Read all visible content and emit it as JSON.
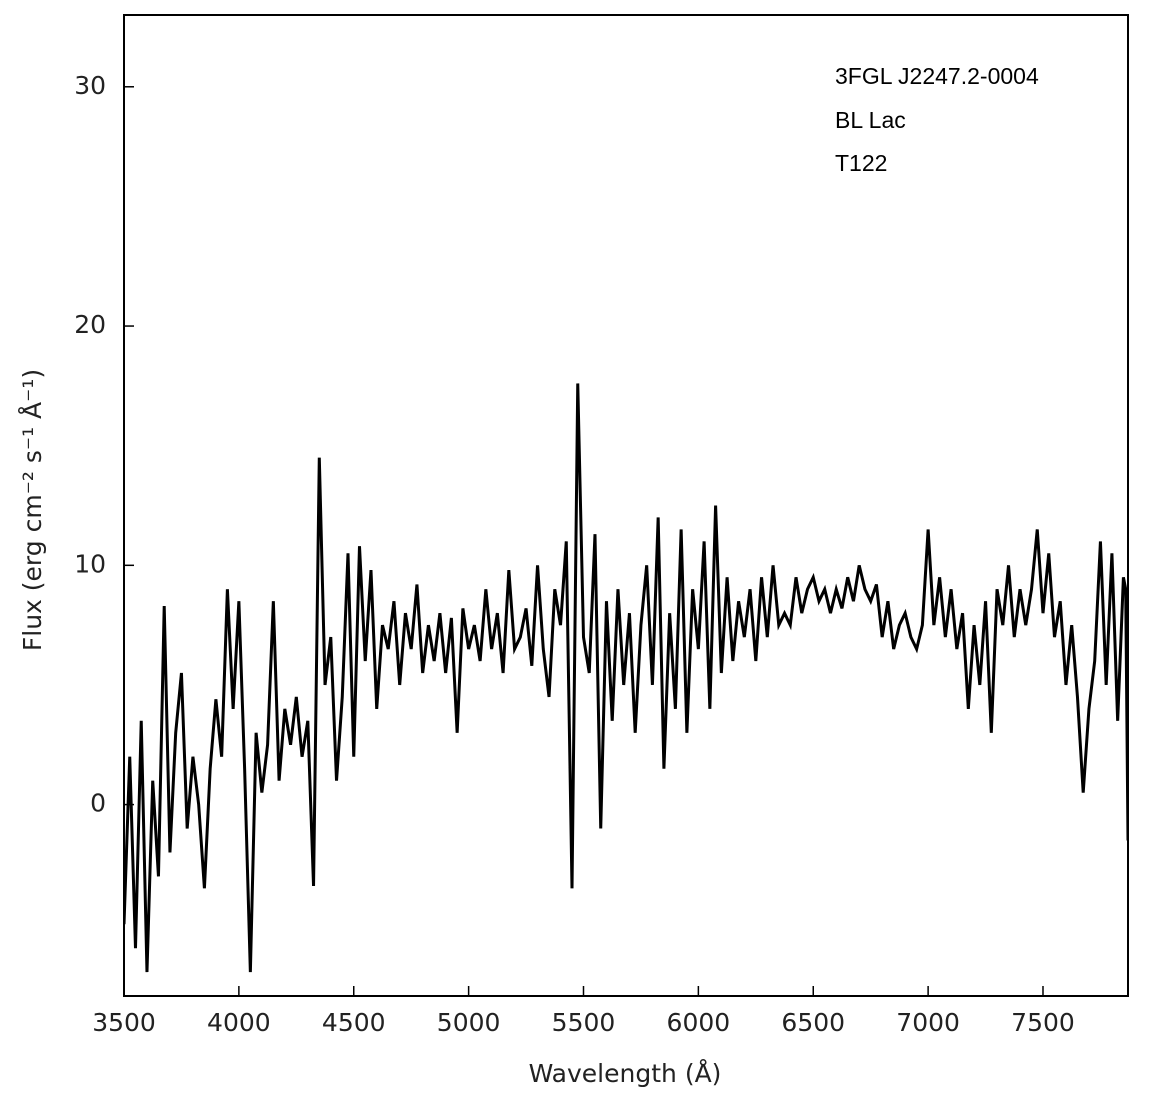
{
  "chart_data": {
    "type": "line",
    "annotations": [
      "3FGL J2247.2-0004",
      "BL Lac",
      "T122"
    ],
    "xlabel": "Wavelength (Å)",
    "ylabel": "Flux (erg cm⁻² s⁻¹ Å⁻¹)",
    "xlim": [
      3500,
      7870
    ],
    "ylim": [
      -8,
      33
    ],
    "xticks": [
      3500,
      4000,
      4500,
      5000,
      5500,
      6000,
      6500,
      7000,
      7500
    ],
    "yticks": [
      0,
      10,
      20,
      30
    ],
    "color": "#000000",
    "x": [
      3500,
      3525,
      3550,
      3575,
      3600,
      3625,
      3650,
      3675,
      3700,
      3725,
      3750,
      3775,
      3800,
      3825,
      3850,
      3875,
      3900,
      3925,
      3950,
      3975,
      4000,
      4025,
      4050,
      4075,
      4100,
      4125,
      4150,
      4175,
      4200,
      4225,
      4250,
      4275,
      4300,
      4325,
      4350,
      4375,
      4400,
      4425,
      4450,
      4475,
      4500,
      4525,
      4550,
      4575,
      4600,
      4625,
      4650,
      4675,
      4700,
      4725,
      4750,
      4775,
      4800,
      4825,
      4850,
      4875,
      4900,
      4925,
      4950,
      4975,
      5000,
      5025,
      5050,
      5075,
      5100,
      5125,
      5150,
      5175,
      5200,
      5225,
      5250,
      5275,
      5300,
      5325,
      5350,
      5375,
      5400,
      5425,
      5450,
      5475,
      5500,
      5525,
      5550,
      5575,
      5600,
      5625,
      5650,
      5675,
      5700,
      5725,
      5750,
      5775,
      5800,
      5825,
      5850,
      5875,
      5900,
      5925,
      5950,
      5975,
      6000,
      6025,
      6050,
      6075,
      6100,
      6125,
      6150,
      6175,
      6200,
      6225,
      6250,
      6275,
      6300,
      6325,
      6350,
      6375,
      6400,
      6425,
      6450,
      6475,
      6500,
      6525,
      6550,
      6575,
      6600,
      6625,
      6650,
      6675,
      6700,
      6725,
      6750,
      6775,
      6800,
      6825,
      6850,
      6875,
      6900,
      6925,
      6950,
      6975,
      7000,
      7025,
      7050,
      7075,
      7100,
      7125,
      7150,
      7175,
      7200,
      7225,
      7250,
      7275,
      7300,
      7325,
      7350,
      7375,
      7400,
      7425,
      7450,
      7475,
      7500,
      7525,
      7550,
      7575,
      7600,
      7625,
      7650,
      7675,
      7700,
      7725,
      7750,
      7775,
      7800,
      7825,
      7850,
      7860,
      7870
    ],
    "values": [
      -5,
      2,
      -6,
      3.5,
      -7,
      1,
      -3,
      8.3,
      -2,
      3,
      5.5,
      -1,
      2,
      0,
      -3.5,
      1.5,
      4.4,
      2,
      9,
      4,
      8.5,
      1.5,
      -7,
      3,
      0.5,
      2.5,
      8.5,
      1,
      4,
      2.5,
      4.5,
      2,
      3.5,
      -3.4,
      14.5,
      5,
      7,
      1,
      4.5,
      10.5,
      2,
      10.8,
      6,
      9.8,
      4,
      7.5,
      6.5,
      8.5,
      5,
      8,
      6.5,
      9.2,
      5.5,
      7.5,
      6,
      8,
      5.5,
      7.8,
      3,
      8.2,
      6.5,
      7.5,
      6,
      9,
      6.5,
      8,
      5.5,
      9.8,
      6.5,
      7,
      8.2,
      5.8,
      10,
      6.5,
      4.5,
      9,
      7.5,
      11,
      -3.5,
      17.6,
      7,
      5.5,
      11.3,
      -1,
      8.5,
      3.5,
      9,
      5,
      8,
      3,
      7.5,
      10,
      5,
      12,
      1.5,
      8,
      4,
      11.5,
      3,
      9,
      6.5,
      11,
      4,
      12.5,
      5.5,
      9.5,
      6,
      8.5,
      7,
      9,
      6,
      9.5,
      7,
      10,
      7.5,
      8,
      7.5,
      9.5,
      8,
      9,
      9.5,
      8.5,
      9,
      8,
      9,
      8.2,
      9.5,
      8.5,
      10,
      9,
      8.5,
      9.2,
      7,
      8.5,
      6.5,
      7.5,
      8,
      7,
      6.5,
      7.5,
      11.5,
      7.5,
      9.5,
      7,
      9,
      6.5,
      8,
      4,
      7.5,
      5,
      8.5,
      3,
      9,
      7.5,
      10,
      7,
      9,
      7.5,
      9,
      11.5,
      8,
      10.5,
      7,
      8.5,
      5,
      7.5,
      4.5,
      0.5,
      4,
      6,
      11,
      5,
      10.5,
      3.5,
      9.5,
      9,
      -1.5
    ]
  }
}
